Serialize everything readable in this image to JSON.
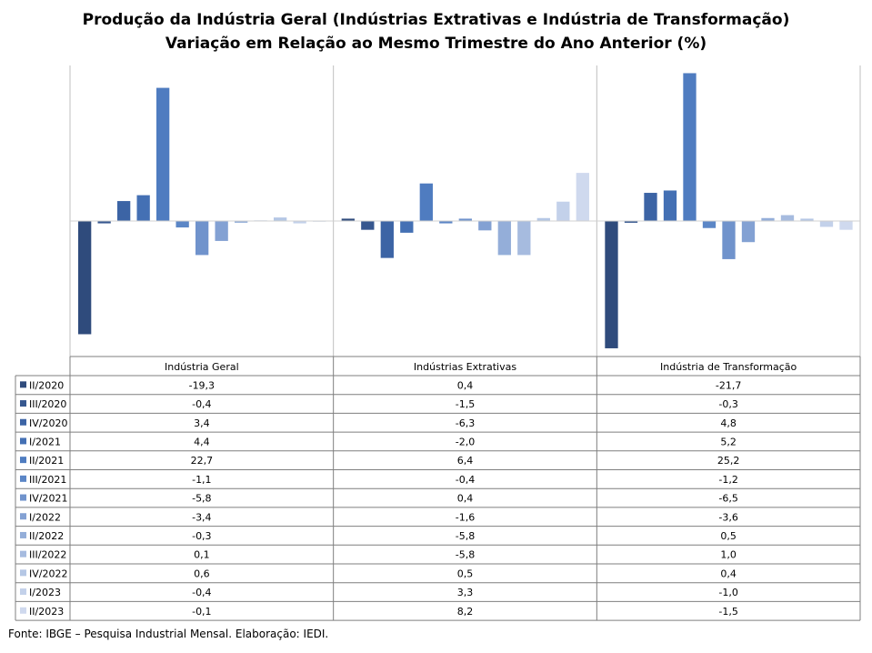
{
  "chart_data": {
    "type": "bar",
    "title": "Produção da Indústria Geral (Indústrias Extrativas e Indústria de Transformação)",
    "subtitle": "Variação em Relação ao Mesmo Trimestre do Ano Anterior (%)",
    "groups": [
      "Indústria Geral",
      "Indústrias Extrativas",
      "Indústria de Transformação"
    ],
    "ylim": [
      -24,
      28
    ],
    "grid": false,
    "legend": "table-bottom",
    "series": [
      {
        "name": "II/2020",
        "color": "#2f4b7c",
        "values": [
          "-19,3",
          "0,4",
          "-21,7"
        ]
      },
      {
        "name": "III/2020",
        "color": "#36578f",
        "values": [
          "-0,4",
          "-1,5",
          "-0,3"
        ]
      },
      {
        "name": "IV/2020",
        "color": "#3c64a5",
        "values": [
          "3,4",
          "-6,3",
          "4,8"
        ]
      },
      {
        "name": "I/2021",
        "color": "#4470b4",
        "values": [
          "4,4",
          "-2,0",
          "5,2"
        ]
      },
      {
        "name": "II/2021",
        "color": "#4f7cc0",
        "values": [
          "22,7",
          "6,4",
          "25,2"
        ]
      },
      {
        "name": "III/2021",
        "color": "#5b86c6",
        "values": [
          "-1,1",
          "-0,4",
          "-1,2"
        ]
      },
      {
        "name": "IV/2021",
        "color": "#7093cc",
        "values": [
          "-5,8",
          "0,4",
          "-6,5"
        ]
      },
      {
        "name": "I/2022",
        "color": "#83a1d3",
        "values": [
          "-3,4",
          "-1,6",
          "-3,6"
        ]
      },
      {
        "name": "II/2022",
        "color": "#94aed9",
        "values": [
          "-0,3",
          "-5,8",
          "0,5"
        ]
      },
      {
        "name": "III/2022",
        "color": "#a6bbdf",
        "values": [
          "0,1",
          "-5,8",
          "1,0"
        ]
      },
      {
        "name": "IV/2022",
        "color": "#b5c7e5",
        "values": [
          "0,6",
          "0,5",
          "0,4"
        ]
      },
      {
        "name": "I/2023",
        "color": "#c3d1ea",
        "values": [
          "-0,4",
          "3,3",
          "-1,0"
        ]
      },
      {
        "name": "II/2023",
        "color": "#cfd9ee",
        "values": [
          "-0,1",
          "8,2",
          "-1,5"
        ]
      }
    ]
  },
  "source": "Fonte: IBGE – Pesquisa Industrial Mensal. Elaboração: IEDI."
}
